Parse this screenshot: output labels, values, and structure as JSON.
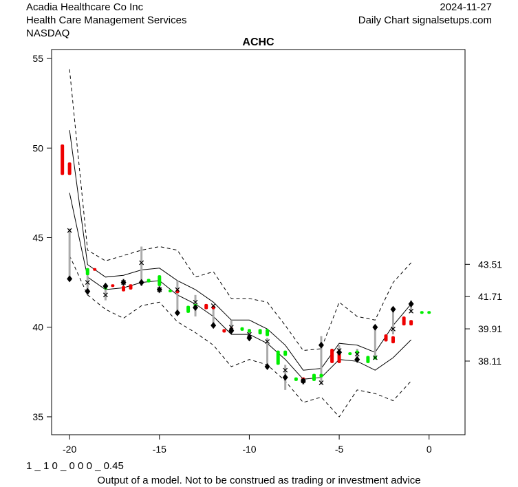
{
  "header": {
    "company": "Acadia Healthcare Co Inc",
    "industry": "Health Care Management Services",
    "exchange": "NASDAQ",
    "date": "2024-11-27",
    "source": "Daily Chart signalsetups.com"
  },
  "footer": {
    "code": "1 _ 1 0 _ 0 0 0 _ 0.45",
    "disclaimer": "Output of a model. Not to be construed as trading or investment advice"
  },
  "chart_data": {
    "type": "line",
    "title": "ACHC",
    "xlim": [
      -21,
      2
    ],
    "ylim": [
      34,
      55.5
    ],
    "x_ticks": [
      -20,
      -15,
      -10,
      -5,
      0
    ],
    "y_ticks_left": [
      35,
      40,
      45,
      50,
      55
    ],
    "y_ticks_right": [
      43.51,
      41.71,
      39.91,
      38.11
    ],
    "grid": false,
    "colors": {
      "up": "#00ee00",
      "down": "#ee0000",
      "range": "#aaaaaa",
      "line": "#000000"
    },
    "series": [
      {
        "style": "solid",
        "x": [
          -20,
          -19,
          -18,
          -17,
          -16,
          -15,
          -14,
          -13,
          -12,
          -11,
          -10,
          -9,
          -8,
          -7,
          -6,
          -5,
          -4,
          -3,
          -2,
          -1
        ],
        "y": [
          47.5,
          42.8,
          42.1,
          42.2,
          42.5,
          42.6,
          41.8,
          41.3,
          40.6,
          39.6,
          39.6,
          39.1,
          38.2,
          37.1,
          37.2,
          38.2,
          38.1,
          37.6,
          38.3,
          39.3
        ]
      },
      {
        "style": "solid",
        "x": [
          -20,
          -19,
          -18,
          -17,
          -16,
          -15,
          -14,
          -13,
          -12,
          -11,
          -10,
          -9,
          -8,
          -7,
          -6,
          -5,
          -4,
          -3,
          -2,
          -1
        ],
        "y": [
          51.0,
          43.5,
          42.8,
          42.9,
          43.2,
          43.3,
          42.6,
          42.1,
          41.4,
          40.4,
          40.4,
          39.9,
          39.0,
          37.6,
          37.7,
          39.1,
          39.0,
          38.6,
          40.1,
          41.3
        ]
      },
      {
        "style": "dashed",
        "x": [
          -20,
          -19,
          -18,
          -17,
          -16,
          -15,
          -14,
          -13,
          -12,
          -11,
          -10,
          -9,
          -8,
          -7,
          -6,
          -5,
          -4,
          -3,
          -2,
          -1
        ],
        "y": [
          54.4,
          44.3,
          43.7,
          44.0,
          44.3,
          44.5,
          44.3,
          42.8,
          43.1,
          41.6,
          41.6,
          41.4,
          40.1,
          38.7,
          38.8,
          41.4,
          40.6,
          40.4,
          42.5,
          43.6
        ]
      },
      {
        "style": "dashed",
        "x": [
          -20,
          -19,
          -18,
          -17,
          -16,
          -15,
          -14,
          -13,
          -12,
          -11,
          -10,
          -9,
          -8,
          -7,
          -6,
          -5,
          -4,
          -3,
          -2,
          -1
        ],
        "y": [
          44.0,
          41.8,
          41.0,
          40.5,
          41.2,
          41.4,
          40.3,
          39.7,
          39.0,
          37.8,
          38.2,
          37.9,
          37.0,
          35.8,
          36.1,
          35.0,
          36.5,
          36.3,
          35.9,
          37.0
        ]
      }
    ],
    "bars": [
      {
        "x": -20.4,
        "open": 50.2,
        "close": 48.5,
        "color": "down"
      },
      {
        "x": -20.0,
        "open": 49.2,
        "close": 48.5,
        "color": "down"
      },
      {
        "x": -19.0,
        "open": 42.9,
        "close": 43.3,
        "color": "up"
      },
      {
        "x": -18.6,
        "open": 43.3,
        "close": 43.2,
        "color": "down"
      },
      {
        "x": -18.0,
        "open": 42.1,
        "close": 42.3,
        "color": "up"
      },
      {
        "x": -17.6,
        "open": 42.4,
        "close": 42.3,
        "color": "down"
      },
      {
        "x": -17.0,
        "open": 42.3,
        "close": 42.0,
        "color": "down"
      },
      {
        "x": -16.6,
        "open": 42.4,
        "close": 42.1,
        "color": "down"
      },
      {
        "x": -16.0,
        "open": 42.6,
        "close": 42.4,
        "color": "down"
      },
      {
        "x": -15.6,
        "open": 42.5,
        "close": 42.7,
        "color": "up"
      },
      {
        "x": -15.0,
        "open": 42.3,
        "close": 42.9,
        "color": "up"
      },
      {
        "x": -14.4,
        "open": 42.0,
        "close": 42.1,
        "color": "up"
      },
      {
        "x": -14.0,
        "open": 42.1,
        "close": 41.9,
        "color": "down"
      },
      {
        "x": -13.4,
        "open": 40.8,
        "close": 41.2,
        "color": "up"
      },
      {
        "x": -13.0,
        "open": 41.1,
        "close": 41.3,
        "color": "up"
      },
      {
        "x": -12.4,
        "open": 41.3,
        "close": 41.0,
        "color": "down"
      },
      {
        "x": -12.0,
        "open": 41.2,
        "close": 41.0,
        "color": "down"
      },
      {
        "x": -11.4,
        "open": 39.9,
        "close": 39.7,
        "color": "down"
      },
      {
        "x": -11.0,
        "open": 40.0,
        "close": 39.8,
        "color": "down"
      },
      {
        "x": -10.4,
        "open": 39.8,
        "close": 40.0,
        "color": "up"
      },
      {
        "x": -10.0,
        "open": 39.7,
        "close": 39.9,
        "color": "up"
      },
      {
        "x": -9.4,
        "open": 39.6,
        "close": 39.9,
        "color": "up"
      },
      {
        "x": -9.0,
        "open": 39.5,
        "close": 39.9,
        "color": "up"
      },
      {
        "x": -8.4,
        "open": 37.9,
        "close": 38.7,
        "color": "up"
      },
      {
        "x": -8.0,
        "open": 38.4,
        "close": 38.7,
        "color": "up"
      },
      {
        "x": -7.4,
        "open": 37.0,
        "close": 37.2,
        "color": "up"
      },
      {
        "x": -7.0,
        "open": 37.2,
        "close": 37.1,
        "color": "down"
      },
      {
        "x": -6.4,
        "open": 37.0,
        "close": 37.4,
        "color": "up"
      },
      {
        "x": -6.0,
        "open": 37.2,
        "close": 37.4,
        "color": "up"
      },
      {
        "x": -5.4,
        "open": 38.8,
        "close": 38.0,
        "color": "down"
      },
      {
        "x": -5.0,
        "open": 38.6,
        "close": 38.0,
        "color": "down"
      },
      {
        "x": -4.4,
        "open": 38.5,
        "close": 38.6,
        "color": "up"
      },
      {
        "x": -4.0,
        "open": 38.5,
        "close": 38.7,
        "color": "up"
      },
      {
        "x": -3.4,
        "open": 38.0,
        "close": 38.4,
        "color": "up"
      },
      {
        "x": -3.0,
        "open": 38.2,
        "close": 38.4,
        "color": "up"
      },
      {
        "x": -2.4,
        "open": 39.6,
        "close": 39.2,
        "color": "down"
      },
      {
        "x": -2.0,
        "open": 39.5,
        "close": 39.1,
        "color": "down"
      },
      {
        "x": -1.4,
        "open": 40.6,
        "close": 40.1,
        "color": "down"
      },
      {
        "x": -1.0,
        "open": 40.4,
        "close": 40.1,
        "color": "down"
      },
      {
        "x": -0.4,
        "open": 40.8,
        "close": 40.9,
        "color": "up"
      },
      {
        "x": 0.0,
        "open": 40.8,
        "close": 40.9,
        "color": "up"
      }
    ],
    "ranges": [
      {
        "x": -20.0,
        "high": 45.5,
        "low": 42.7,
        "close": 45.4
      },
      {
        "x": -19.0,
        "high": 42.9,
        "low": 41.8,
        "close": 42.5
      },
      {
        "x": -18.0,
        "high": 42.2,
        "low": 41.5,
        "close": 41.8
      },
      {
        "x": -17.0,
        "high": 42.7,
        "low": 42.2,
        "close": 42.5
      },
      {
        "x": -16.0,
        "high": 44.5,
        "low": 42.3,
        "close": 43.6
      },
      {
        "x": -15.0,
        "high": 42.6,
        "low": 41.9,
        "close": 42.1
      },
      {
        "x": -14.0,
        "high": 42.6,
        "low": 40.8,
        "close": 42.1
      },
      {
        "x": -13.0,
        "high": 41.8,
        "low": 40.6,
        "close": 41.4
      },
      {
        "x": -12.0,
        "high": 41.2,
        "low": 40.1,
        "close": 41.2
      },
      {
        "x": -11.0,
        "high": 40.4,
        "low": 39.8,
        "close": 40.0
      },
      {
        "x": -10.0,
        "high": 39.9,
        "low": 39.3,
        "close": 39.6
      },
      {
        "x": -9.0,
        "high": 39.4,
        "low": 37.8,
        "close": 39.2
      },
      {
        "x": -8.0,
        "high": 37.9,
        "low": 36.5,
        "close": 37.6
      },
      {
        "x": -7.0,
        "high": 37.1,
        "low": 36.8,
        "close": 37.0
      },
      {
        "x": -6.0,
        "high": 39.5,
        "low": 36.8,
        "close": 36.9
      },
      {
        "x": -5.0,
        "high": 39.0,
        "low": 38.3,
        "close": 38.7
      },
      {
        "x": -4.0,
        "high": 38.8,
        "low": 38.1,
        "close": 38.5
      },
      {
        "x": -3.0,
        "high": 40.0,
        "low": 38.3,
        "close": 38.3
      },
      {
        "x": -2.0,
        "high": 41.0,
        "low": 39.6,
        "close": 39.9
      },
      {
        "x": -1.0,
        "high": 41.5,
        "low": 40.8,
        "close": 40.9
      }
    ],
    "diamonds": [
      {
        "x": -20.0,
        "y": 42.7
      },
      {
        "x": -19.0,
        "y": 42.0
      },
      {
        "x": -18.0,
        "y": 42.3
      },
      {
        "x": -17.0,
        "y": 42.5
      },
      {
        "x": -16.0,
        "y": 42.5
      },
      {
        "x": -15.0,
        "y": 42.1
      },
      {
        "x": -14.0,
        "y": 40.8
      },
      {
        "x": -13.0,
        "y": 41.1
      },
      {
        "x": -12.0,
        "y": 40.1
      },
      {
        "x": -11.0,
        "y": 39.8
      },
      {
        "x": -10.0,
        "y": 39.4
      },
      {
        "x": -9.0,
        "y": 37.8
      },
      {
        "x": -8.0,
        "y": 37.2
      },
      {
        "x": -7.0,
        "y": 37.0
      },
      {
        "x": -6.0,
        "y": 39.0
      },
      {
        "x": -5.0,
        "y": 38.6
      },
      {
        "x": -4.0,
        "y": 38.2
      },
      {
        "x": -3.0,
        "y": 40.0
      },
      {
        "x": -2.0,
        "y": 41.0
      },
      {
        "x": -1.0,
        "y": 41.3
      }
    ]
  }
}
